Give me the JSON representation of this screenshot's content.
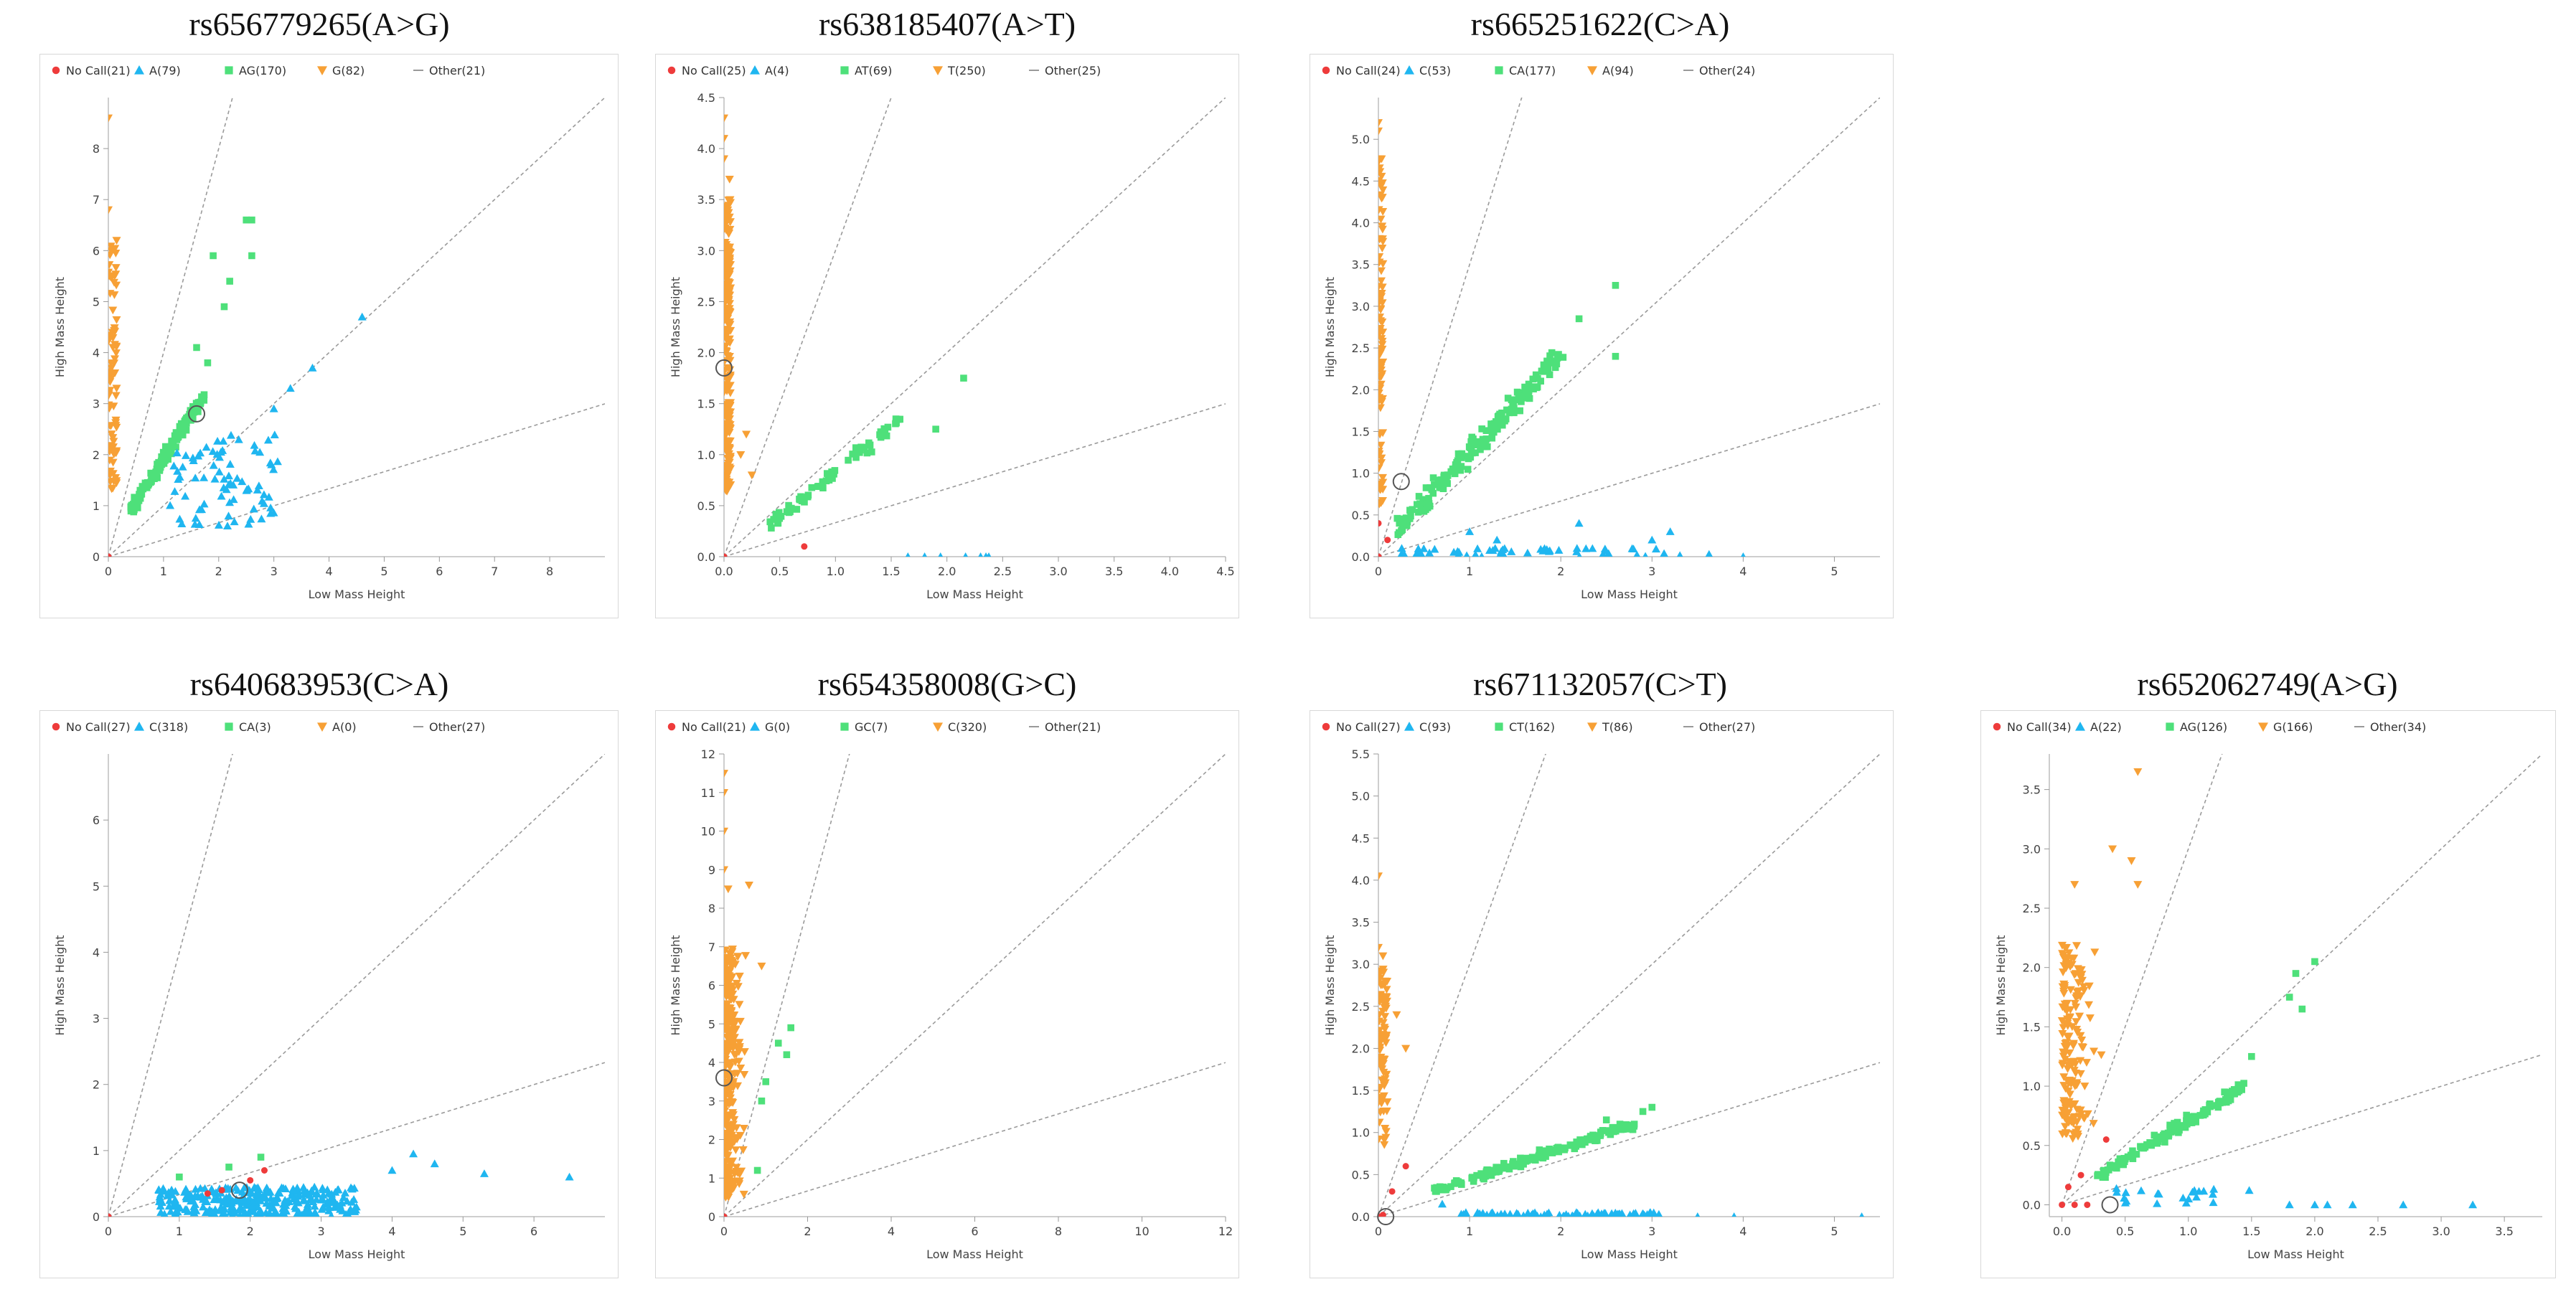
{
  "colors": {
    "nocall": "#ee3b3b",
    "blue": "#1fb6f0",
    "green": "#4ee07a",
    "orange": "#f7a035",
    "ref": "#9a9a9a"
  },
  "icons": {
    "nocall": "circle",
    "blue": "triangle-up",
    "green": "square",
    "orange": "triangle-down",
    "other": "dash"
  },
  "chart_data": [
    {
      "title": "rs656779265(A>G)",
      "type": "scatter",
      "xlabel": "Low Mass Height",
      "ylabel": "High Mass Height",
      "xlim": [
        0,
        9
      ],
      "ylim": [
        0,
        9
      ],
      "xticks": [
        "0",
        "1",
        "2",
        "3",
        "4",
        "5",
        "6",
        "7",
        "8"
      ],
      "yticks": [
        "0",
        "1",
        "2",
        "3",
        "4",
        "5",
        "6",
        "7",
        "8"
      ],
      "legend": [
        "No Call(21)",
        "A(79)",
        "AG(170)",
        "G(82)",
        "Other(21)"
      ],
      "ref_slopes": [
        4,
        1,
        0.333
      ],
      "clusters": [
        {
          "cls": "orange",
          "n": 82,
          "x": [
            0,
            0.15
          ],
          "y": [
            1.3,
            6.2
          ],
          "extra": [
            [
              0,
              8.6
            ],
            [
              0,
              6.8
            ],
            [
              0.15,
              6.2
            ]
          ]
        },
        {
          "cls": "green",
          "n": 170,
          "x": [
            0.4,
            1.7
          ],
          "y": [
            0.9,
            3.1
          ],
          "extra": [
            [
              1.9,
              5.9
            ],
            [
              2.5,
              6.6
            ],
            [
              2.6,
              6.6
            ],
            [
              2.6,
              5.9
            ],
            [
              2.2,
              5.4
            ],
            [
              2.1,
              4.9
            ],
            [
              1.6,
              4.1
            ],
            [
              1.8,
              3.8
            ]
          ]
        },
        {
          "cls": "blue",
          "n": 79,
          "x": [
            1.1,
            3.1
          ],
          "y": [
            0.6,
            2.4
          ],
          "extra": [
            [
              4.6,
              4.7
            ],
            [
              3.7,
              3.7
            ],
            [
              3.3,
              3.3
            ],
            [
              3.0,
              2.9
            ]
          ]
        },
        {
          "cls": "nocall",
          "n": 0,
          "x": [
            0,
            0
          ],
          "y": [
            0,
            0
          ],
          "extra": [
            [
              0,
              0
            ]
          ]
        }
      ],
      "marker": [
        1.6,
        2.8
      ]
    },
    {
      "title": "rs638185407(A>T)",
      "type": "scatter",
      "xlabel": "Low Mass Height",
      "ylabel": "High Mass Height",
      "xlim": [
        0,
        4.5
      ],
      "ylim": [
        0,
        4.5
      ],
      "xticks": [
        "0.0",
        "0.5",
        "1.0",
        "1.5",
        "2.0",
        "2.5",
        "3.0",
        "3.5",
        "4.0",
        "4.5"
      ],
      "yticks": [
        "0.0",
        "0.5",
        "1.0",
        "1.5",
        "2.0",
        "2.5",
        "3.0",
        "3.5",
        "4.0",
        "4.5"
      ],
      "legend": [
        "No Call(25)",
        "A(4)",
        "AT(69)",
        "T(250)",
        "Other(25)"
      ],
      "ref_slopes": [
        3,
        1,
        0.333
      ],
      "clusters": [
        {
          "cls": "orange",
          "n": 250,
          "x": [
            0,
            0.06
          ],
          "y": [
            0.6,
            3.5
          ],
          "extra": [
            [
              0,
              4.3
            ],
            [
              0,
              4.1
            ],
            [
              0,
              3.9
            ],
            [
              0.05,
              3.7
            ],
            [
              0.25,
              0.8
            ],
            [
              0.2,
              1.2
            ],
            [
              0.15,
              1.0
            ]
          ]
        },
        {
          "cls": "green",
          "n": 69,
          "x": [
            0.4,
            1.6
          ],
          "y": [
            0.3,
            1.35
          ],
          "extra": [
            [
              2.15,
              1.75
            ],
            [
              1.9,
              1.25
            ]
          ]
        },
        {
          "cls": "blue",
          "n": 4,
          "x": [
            1.6,
            2.4
          ],
          "y": [
            0,
            0
          ],
          "extra": [
            [
              1.65,
              0
            ],
            [
              1.8,
              0
            ],
            [
              2.35,
              0
            ]
          ]
        },
        {
          "cls": "nocall",
          "n": 0,
          "x": [
            0,
            0
          ],
          "y": [
            0,
            0
          ],
          "extra": [
            [
              0,
              0
            ],
            [
              0.72,
              0.1
            ]
          ]
        }
      ],
      "marker": [
        0.0,
        1.85
      ]
    },
    {
      "title": "rs665251622(C>A)",
      "type": "scatter",
      "xlabel": "Low Mass Height",
      "ylabel": "High Mass Height",
      "xlim": [
        0,
        5.5
      ],
      "ylim": [
        0,
        5.5
      ],
      "xticks": [
        "0",
        "1",
        "2",
        "3",
        "4",
        "5"
      ],
      "yticks": [
        "0.0",
        "0.5",
        "1.0",
        "1.5",
        "2.0",
        "2.5",
        "3.0",
        "3.5",
        "4.0",
        "4.5",
        "5.0"
      ],
      "legend": [
        "No Call(24)",
        "C(53)",
        "CA(177)",
        "A(94)",
        "Other(24)"
      ],
      "ref_slopes": [
        3.5,
        1,
        0.333
      ],
      "clusters": [
        {
          "cls": "orange",
          "n": 94,
          "x": [
            0,
            0.05
          ],
          "y": [
            0.6,
            4.8
          ],
          "extra": [
            [
              0,
              5.2
            ],
            [
              0,
              5.1
            ]
          ]
        },
        {
          "cls": "green",
          "n": 177,
          "x": [
            0.2,
            2.0
          ],
          "y": [
            0.3,
            2.4
          ],
          "extra": [
            [
              2.6,
              3.25
            ],
            [
              2.6,
              2.4
            ],
            [
              2.2,
              2.85
            ]
          ]
        },
        {
          "cls": "blue",
          "n": 53,
          "x": [
            0.2,
            3.7
          ],
          "y": [
            0,
            0.1
          ],
          "extra": [
            [
              4.0,
              0
            ],
            [
              3.2,
              0.3
            ],
            [
              2.2,
              0.4
            ],
            [
              1.0,
              0.3
            ],
            [
              1.3,
              0.2
            ],
            [
              3.0,
              0.2
            ]
          ]
        },
        {
          "cls": "nocall",
          "n": 0,
          "x": [
            0,
            0
          ],
          "y": [
            0,
            0
          ],
          "extra": [
            [
              0,
              0
            ],
            [
              0,
              0.4
            ],
            [
              0.1,
              0.2
            ]
          ]
        }
      ],
      "marker": [
        0.25,
        0.9
      ]
    },
    {
      "title": "rs640683953(C>A)",
      "type": "scatter",
      "xlabel": "Low Mass Height",
      "ylabel": "High Mass Height",
      "xlim": [
        0,
        7
      ],
      "ylim": [
        0,
        7
      ],
      "xticks": [
        "0",
        "1",
        "2",
        "3",
        "4",
        "5",
        "6"
      ],
      "yticks": [
        "0",
        "1",
        "2",
        "3",
        "4",
        "5",
        "6"
      ],
      "legend": [
        "No Call(27)",
        "C(318)",
        "CA(3)",
        "A(0)",
        "Other(27)"
      ],
      "ref_slopes": [
        4,
        1,
        0.333
      ],
      "clusters": [
        {
          "cls": "blue",
          "n": 318,
          "x": [
            0.7,
            3.5
          ],
          "y": [
            0,
            0.45
          ],
          "extra": [
            [
              4.3,
              0.95
            ],
            [
              4.6,
              0.8
            ],
            [
              5.3,
              0.65
            ],
            [
              6.5,
              0.6
            ],
            [
              4.0,
              0.7
            ]
          ]
        },
        {
          "cls": "green",
          "n": 0,
          "x": [
            1,
            1
          ],
          "y": [
            0.6,
            0.6
          ],
          "extra": [
            [
              1.0,
              0.6
            ],
            [
              1.7,
              0.75
            ],
            [
              2.15,
              0.9
            ]
          ]
        },
        {
          "cls": "nocall",
          "n": 0,
          "x": [
            0,
            0
          ],
          "y": [
            0,
            0
          ],
          "extra": [
            [
              0,
              0
            ],
            [
              1.4,
              0.35
            ],
            [
              1.6,
              0.4
            ],
            [
              2.0,
              0.55
            ],
            [
              2.2,
              0.7
            ]
          ]
        }
      ],
      "marker": [
        1.85,
        0.4
      ]
    },
    {
      "title": "rs654358008(G>C)",
      "type": "scatter",
      "xlabel": "Low Mass Height",
      "ylabel": "High Mass Height",
      "xlim": [
        0,
        12
      ],
      "ylim": [
        0,
        12
      ],
      "xticks": [
        "0",
        "2",
        "4",
        "6",
        "8",
        "10",
        "12"
      ],
      "yticks": [
        "0",
        "1",
        "2",
        "3",
        "4",
        "5",
        "6",
        "7",
        "8",
        "9",
        "10",
        "11",
        "12"
      ],
      "legend": [
        "No Call(21)",
        "G(0)",
        "GC(7)",
        "C(320)",
        "Other(21)"
      ],
      "ref_slopes": [
        4,
        1,
        0.333
      ],
      "clusters": [
        {
          "cls": "orange",
          "n": 320,
          "x": [
            0,
            1.0
          ],
          "y": [
            0.5,
            7
          ],
          "extra": [
            [
              0,
              11.5
            ],
            [
              0,
              11.0
            ],
            [
              0,
              10.0
            ],
            [
              0,
              9.0
            ],
            [
              0.1,
              8.5
            ],
            [
              0.6,
              8.6
            ],
            [
              0.9,
              6.5
            ]
          ]
        },
        {
          "cls": "green",
          "n": 0,
          "x": [
            1,
            1
          ],
          "y": [
            3,
            3
          ],
          "extra": [
            [
              1.3,
              4.5
            ],
            [
              1.6,
              4.9
            ],
            [
              1.0,
              3.5
            ],
            [
              0.8,
              1.2
            ],
            [
              1.5,
              4.2
            ],
            [
              0.9,
              3.0
            ]
          ]
        },
        {
          "cls": "nocall",
          "n": 0,
          "x": [
            0,
            0
          ],
          "y": [
            0,
            0
          ],
          "extra": [
            [
              0,
              0
            ]
          ]
        }
      ],
      "marker": [
        0.0,
        3.6
      ]
    },
    {
      "title": "rs671132057(C>T)",
      "type": "scatter",
      "xlabel": "Low Mass Height",
      "ylabel": "High Mass Height",
      "xlim": [
        0,
        5.5
      ],
      "ylim": [
        0,
        5.5
      ],
      "xticks": [
        "0",
        "1",
        "2",
        "3",
        "4",
        "5"
      ],
      "yticks": [
        "0.0",
        "0.5",
        "1.0",
        "1.5",
        "2.0",
        "2.5",
        "3.0",
        "3.5",
        "4.0",
        "4.5",
        "5.0",
        "5.5"
      ],
      "legend": [
        "No Call(27)",
        "C(93)",
        "CT(162)",
        "T(86)",
        "Other(27)"
      ],
      "ref_slopes": [
        3,
        1,
        0.333
      ],
      "clusters": [
        {
          "cls": "orange",
          "n": 86,
          "x": [
            0,
            0.1
          ],
          "y": [
            0.8,
            3.0
          ],
          "extra": [
            [
              0,
              4.05
            ],
            [
              0,
              3.2
            ],
            [
              0.05,
              3.1
            ],
            [
              0.3,
              2.0
            ],
            [
              0.2,
              2.4
            ]
          ]
        },
        {
          "cls": "green",
          "n": 162,
          "x": [
            0.6,
            2.8
          ],
          "y": [
            0.3,
            1.1
          ],
          "extra": [
            [
              2.9,
              1.25
            ],
            [
              3.0,
              1.3
            ],
            [
              2.5,
              1.15
            ]
          ]
        },
        {
          "cls": "blue",
          "n": 93,
          "x": [
            0.9,
            3.1
          ],
          "y": [
            0,
            0.05
          ],
          "extra": [
            [
              3.5,
              0
            ],
            [
              3.9,
              0
            ],
            [
              5.3,
              0
            ],
            [
              0.7,
              0.15
            ]
          ]
        },
        {
          "cls": "nocall",
          "n": 0,
          "x": [
            0,
            0
          ],
          "y": [
            0,
            0
          ],
          "extra": [
            [
              0,
              0
            ],
            [
              0.05,
              0.02
            ],
            [
              0.3,
              0.6
            ],
            [
              0.15,
              0.3
            ]
          ]
        }
      ],
      "marker": [
        0.08,
        0.0
      ]
    },
    {
      "title": "rs652062749(A>G)",
      "type": "scatter",
      "xlabel": "Low Mass Height",
      "ylabel": "High Mass Height",
      "xlim": [
        -0.1,
        3.8
      ],
      "ylim": [
        -0.1,
        3.8
      ],
      "xticks": [
        "0.0",
        "0.5",
        "1.0",
        "1.5",
        "2.0",
        "2.5",
        "3.0",
        "3.5"
      ],
      "yticks": [
        "0.0",
        "0.5",
        "1.0",
        "1.5",
        "2.0",
        "2.5",
        "3.0",
        "3.5"
      ],
      "legend": [
        "No Call(34)",
        "A(22)",
        "AG(126)",
        "G(166)",
        "Other(34)"
      ],
      "ref_slopes": [
        3,
        1,
        0.333
      ],
      "clusters": [
        {
          "cls": "orange",
          "n": 166,
          "x": [
            0,
            0.6
          ],
          "y": [
            0.55,
            2.2
          ],
          "extra": [
            [
              0.6,
              3.65
            ],
            [
              0.55,
              2.9
            ],
            [
              0.6,
              2.7
            ],
            [
              0.4,
              3.0
            ],
            [
              0.1,
              2.7
            ]
          ]
        },
        {
          "cls": "green",
          "n": 126,
          "x": [
            0.3,
            1.45
          ],
          "y": [
            0.25,
            1.0
          ],
          "extra": [
            [
              2.0,
              2.05
            ],
            [
              1.85,
              1.95
            ],
            [
              1.9,
              1.65
            ],
            [
              1.8,
              1.75
            ],
            [
              1.5,
              1.25
            ]
          ]
        },
        {
          "cls": "blue",
          "n": 22,
          "x": [
            0.4,
            1.5
          ],
          "y": [
            0,
            0.15
          ],
          "extra": [
            [
              2.0,
              0
            ],
            [
              2.1,
              0
            ],
            [
              2.3,
              0
            ],
            [
              2.7,
              0
            ],
            [
              3.25,
              0
            ],
            [
              1.8,
              0
            ]
          ]
        },
        {
          "cls": "nocall",
          "n": 0,
          "x": [
            0,
            0
          ],
          "y": [
            0,
            0
          ],
          "extra": [
            [
              0,
              0
            ],
            [
              0.1,
              0
            ],
            [
              0.2,
              0
            ],
            [
              0.05,
              0.15
            ],
            [
              0.15,
              0.25
            ],
            [
              0.35,
              0.55
            ]
          ]
        }
      ],
      "marker": [
        0.38,
        0.0
      ]
    }
  ]
}
